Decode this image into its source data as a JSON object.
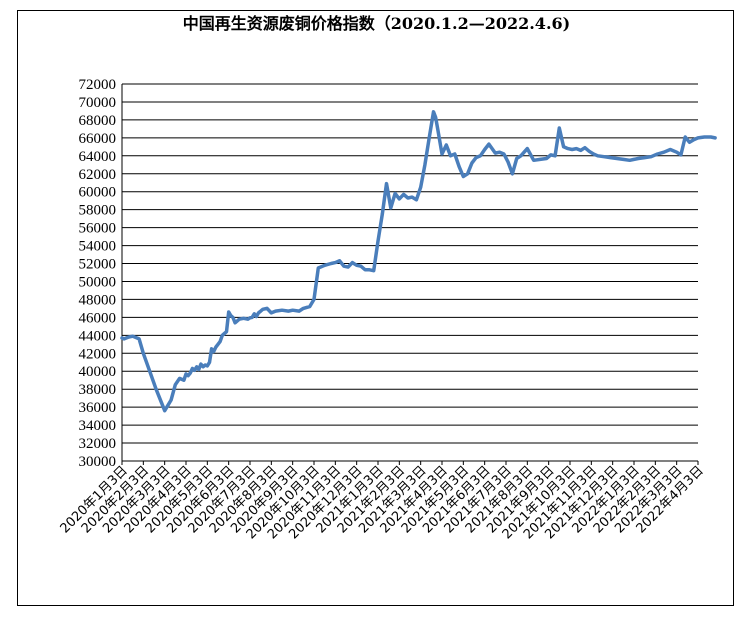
{
  "chart_data": {
    "type": "line",
    "title": "中国再生资源废铜价格指数（2020.1.2—2022.4.6)",
    "xlabel": "",
    "ylabel": "",
    "ylim": [
      30000,
      72000
    ],
    "yticks": [
      30000,
      32000,
      34000,
      36000,
      38000,
      40000,
      42000,
      44000,
      46000,
      48000,
      50000,
      52000,
      54000,
      56000,
      58000,
      60000,
      62000,
      64000,
      66000,
      68000,
      70000,
      72000
    ],
    "xticks": [
      "2020年1月3日",
      "2020年2月3日",
      "2020年3月3日",
      "2020年4月3日",
      "2020年5月3日",
      "2020年6月3日",
      "2020年7月3日",
      "2020年8月3日",
      "2020年9月3日",
      "2020年10月3日",
      "2020年11月3日",
      "2020年12月3日",
      "2021年1月3日",
      "2021年2月3日",
      "2021年3月3日",
      "2021年4月3日",
      "2021年5月3日",
      "2021年6月3日",
      "2021年7月3日",
      "2021年8月3日",
      "2021年9月3日",
      "2021年10月3日",
      "2021年11月3日",
      "2021年12月3日",
      "2022年1月3日",
      "2022年2月3日",
      "2022年3月3日",
      "2022年4月3日"
    ],
    "grid": true,
    "legend": "none",
    "line_color": "#4A7EBB",
    "series": [
      {
        "x": [
          0,
          0.1,
          0.3,
          0.5,
          0.8,
          1.0,
          1.3,
          1.6,
          2.0,
          2.3,
          2.5,
          2.7,
          2.9,
          3.0,
          3.1,
          3.2,
          3.3,
          3.4,
          3.5,
          3.6,
          3.7,
          3.8,
          3.9,
          4.0,
          4.1,
          4.2,
          4.3,
          4.4,
          4.5,
          4.6,
          4.7,
          4.8,
          4.9,
          5.0,
          5.1,
          5.2,
          5.3,
          5.5,
          5.7,
          5.9,
          6.0,
          6.1,
          6.2,
          6.3,
          6.4,
          6.5,
          6.6,
          6.8,
          7.0,
          7.2,
          7.5,
          7.8,
          8.0,
          8.3,
          8.5,
          8.8,
          9.0,
          9.2,
          9.5,
          9.8,
          10.0,
          10.2,
          10.4,
          10.6,
          10.8,
          11.0,
          11.2,
          11.4,
          11.6,
          11.8,
          12.0,
          12.2,
          12.4,
          12.6,
          12.8,
          13.0,
          13.2,
          13.4,
          13.6,
          13.8,
          14.0,
          14.2,
          14.4,
          14.6,
          14.7,
          14.8,
          15.0,
          15.2,
          15.4,
          15.6,
          15.8,
          16.0,
          16.2,
          16.4,
          16.6,
          16.8,
          17.0,
          17.2,
          17.35,
          17.5,
          17.7,
          17.9,
          18.1,
          18.3,
          18.5,
          18.7,
          19.0,
          19.3,
          19.6,
          19.9,
          20.1,
          20.3,
          20.5,
          20.7,
          20.9,
          21.1,
          21.3,
          21.5,
          21.7,
          21.9,
          22.1,
          22.3,
          22.6,
          22.9,
          23.2,
          23.5,
          23.8,
          24.0,
          24.2,
          24.5,
          24.8,
          25.1,
          25.4,
          25.7,
          26.0,
          26.2,
          26.4,
          26.6,
          26.8,
          27.0,
          27.3,
          27.6,
          27.8
        ],
        "y": [
          43700,
          43600,
          43800,
          43900,
          43600,
          42000,
          40000,
          38000,
          35600,
          36800,
          38500,
          39200,
          39000,
          39700,
          39500,
          39800,
          40300,
          40100,
          40500,
          40200,
          40800,
          40500,
          40700,
          40600,
          41000,
          42500,
          42200,
          42700,
          43000,
          43300,
          44000,
          44200,
          44400,
          46600,
          46200,
          46000,
          45400,
          45800,
          45900,
          45800,
          45950,
          46000,
          46400,
          46100,
          46500,
          46700,
          46900,
          47000,
          46500,
          46700,
          46800,
          46700,
          46800,
          46700,
          47000,
          47200,
          48000,
          51500,
          51800,
          52000,
          52100,
          52300,
          51700,
          51600,
          52100,
          51800,
          51700,
          51300,
          51300,
          51200,
          54500,
          57500,
          60900,
          58200,
          59800,
          59200,
          59700,
          59300,
          59400,
          59100,
          60500,
          63000,
          66000,
          68900,
          68300,
          67000,
          64200,
          65200,
          64000,
          64200,
          62800,
          61700,
          62000,
          63200,
          63800,
          64000,
          64700,
          65300,
          64800,
          64300,
          64400,
          64200,
          63300,
          62000,
          63700,
          64000,
          64800,
          63500,
          63600,
          63700,
          64100,
          64000,
          67100,
          65000,
          64800,
          64700,
          64800,
          64600,
          64900,
          64500,
          64200,
          64000,
          63900,
          63800,
          63700,
          63600,
          63500,
          63600,
          63700,
          63800,
          63900,
          64200,
          64400,
          64700,
          64400,
          64100,
          66100,
          65500,
          65800,
          66000,
          66100,
          66100,
          66000
        ]
      }
    ]
  }
}
